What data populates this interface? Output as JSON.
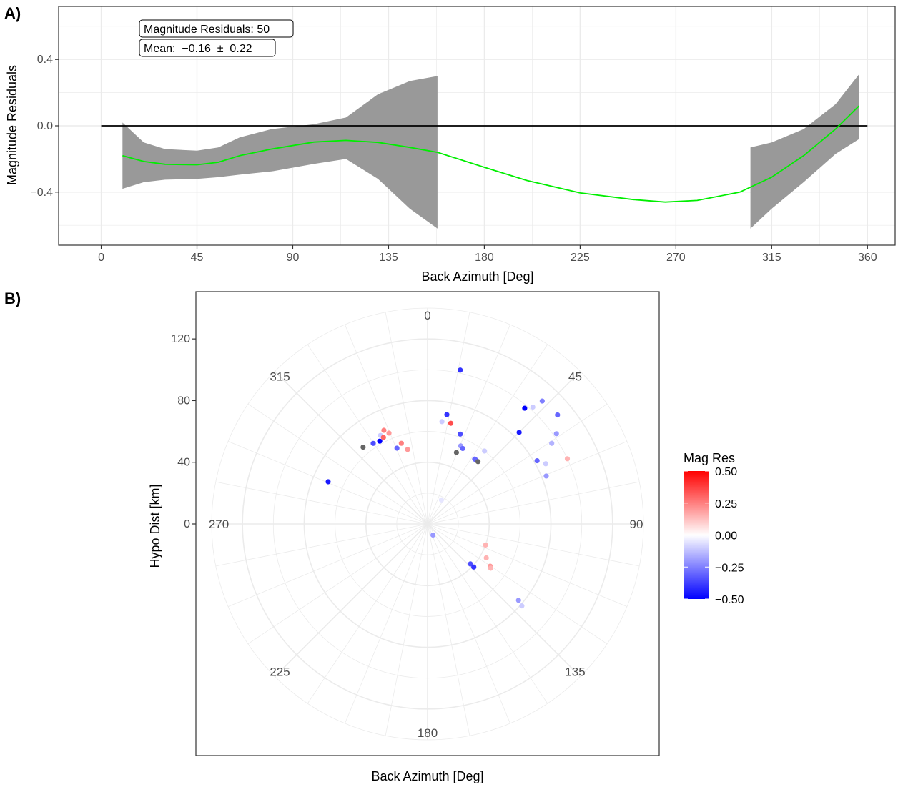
{
  "chart_data": [
    {
      "panel": "A)",
      "type": "line",
      "xlabel": "Back Azimuth [Deg]",
      "ylabel": "Magnitude Residuals",
      "xlim": [
        -20,
        373
      ],
      "ylim": [
        -0.72,
        0.72
      ],
      "x_ticks": [
        0,
        45,
        90,
        135,
        180,
        225,
        270,
        315,
        360
      ],
      "y_ticks": [
        -0.4,
        0.0,
        0.4
      ],
      "y_tick_labels": [
        "−0.4",
        "0.0",
        "0.4"
      ],
      "grid": true,
      "annotations": [
        "Magnitude Residuals: 50",
        "Mean:  −0.16  ±  0.22"
      ],
      "reference_line": {
        "y": 0,
        "from": 0,
        "to": 360,
        "color": "#000000"
      },
      "fit_color": "#00ee00",
      "band_color": "#999999",
      "fit": {
        "x": [
          10,
          20,
          30,
          45,
          55,
          65,
          80,
          100,
          115,
          130,
          145,
          158,
          180,
          200,
          225,
          250,
          265,
          280,
          300,
          315,
          330,
          345,
          356
        ],
        "y": [
          -0.18,
          -0.215,
          -0.232,
          -0.235,
          -0.22,
          -0.18,
          -0.14,
          -0.098,
          -0.088,
          -0.1,
          -0.13,
          -0.16,
          -0.25,
          -0.33,
          -0.405,
          -0.445,
          -0.46,
          -0.45,
          -0.4,
          -0.31,
          -0.18,
          -0.02,
          0.12
        ]
      },
      "bands": [
        {
          "x": [
            10,
            20,
            30,
            45,
            55,
            65,
            80,
            100,
            115,
            130,
            145,
            158
          ],
          "lower": [
            -0.38,
            -0.34,
            -0.325,
            -0.32,
            -0.31,
            -0.295,
            -0.275,
            -0.23,
            -0.2,
            -0.32,
            -0.5,
            -0.62
          ],
          "upper": [
            0.02,
            -0.1,
            -0.14,
            -0.15,
            -0.13,
            -0.07,
            -0.02,
            0.01,
            0.05,
            0.19,
            0.27,
            0.3
          ]
        },
        {
          "x": [
            305,
            315,
            330,
            345,
            356
          ],
          "lower": [
            -0.62,
            -0.5,
            -0.34,
            -0.17,
            -0.08
          ],
          "upper": [
            -0.13,
            -0.1,
            -0.02,
            0.13,
            0.31
          ]
        }
      ]
    },
    {
      "panel": "B)",
      "type": "scatter",
      "projection": "polar",
      "xlabel": "Back Azimuth [Deg]",
      "ylabel": "Hypo Dist [km]",
      "theta_ticks": [
        0,
        45,
        90,
        135,
        180,
        225,
        270,
        315
      ],
      "r_ticks": [
        0,
        40,
        80,
        120
      ],
      "r_max": 140,
      "grid": true,
      "color_scale": {
        "title": "Mag Res",
        "min": -0.5,
        "max": 0.5,
        "low": "#0000ff",
        "mid": "#ffffff",
        "high": "#ff0000",
        "na_color": "#666666",
        "ticks": [
          0.5,
          0.25,
          0.0,
          -0.25,
          -0.5
        ],
        "tick_labels": [
          "0.50",
          "0.25",
          "0.00",
          "−0.25",
          "−0.50"
        ]
      },
      "points": [
        {
          "az": 12,
          "dist": 102,
          "res": -0.4
        },
        {
          "az": 10,
          "dist": 72,
          "res": -0.4
        },
        {
          "az": 13,
          "dist": 67,
          "res": 0.35
        },
        {
          "az": 8,
          "dist": 67,
          "res": -0.1
        },
        {
          "az": 20,
          "dist": 62,
          "res": -0.35
        },
        {
          "az": 23,
          "dist": 55,
          "res": -0.2
        },
        {
          "az": 25,
          "dist": 54,
          "res": -0.3
        },
        {
          "az": 22,
          "dist": 50,
          "res": null
        },
        {
          "az": 40,
          "dist": 98,
          "res": -0.5
        },
        {
          "az": 43,
          "dist": 109,
          "res": -0.25
        },
        {
          "az": 42,
          "dist": 102,
          "res": -0.1
        },
        {
          "az": 50,
          "dist": 110,
          "res": -0.3
        },
        {
          "az": 55,
          "dist": 102,
          "res": -0.2
        },
        {
          "az": 57,
          "dist": 96,
          "res": -0.15
        },
        {
          "az": 45,
          "dist": 84,
          "res": -0.45
        },
        {
          "az": 38,
          "dist": 60,
          "res": -0.1
        },
        {
          "az": 36,
          "dist": 52,
          "res": -0.3
        },
        {
          "az": 37,
          "dist": 52,
          "res": -0.3
        },
        {
          "az": 39,
          "dist": 52,
          "res": null
        },
        {
          "az": 65,
          "dist": 100,
          "res": 0.15
        },
        {
          "az": 63,
          "dist": 86,
          "res": -0.1
        },
        {
          "az": 60,
          "dist": 82,
          "res": -0.3
        },
        {
          "az": 68,
          "dist": 83,
          "res": -0.2
        },
        {
          "az": 30,
          "dist": 18,
          "res": -0.05
        },
        {
          "az": 335,
          "dist": 67,
          "res": 0.25
        },
        {
          "az": 332,
          "dist": 65,
          "res": -0.1
        },
        {
          "az": 337,
          "dist": 64,
          "res": 0.2
        },
        {
          "az": 333,
          "dist": 63,
          "res": 0.3
        },
        {
          "az": 330,
          "dist": 62,
          "res": -0.5
        },
        {
          "az": 326,
          "dist": 63,
          "res": -0.35
        },
        {
          "az": 342,
          "dist": 55,
          "res": 0.25
        },
        {
          "az": 338,
          "dist": 53,
          "res": -0.3
        },
        {
          "az": 345,
          "dist": 50,
          "res": 0.2
        },
        {
          "az": 320,
          "dist": 65,
          "res": null
        },
        {
          "az": 293,
          "dist": 70,
          "res": -0.45
        },
        {
          "az": 133,
          "dist": 38,
          "res": -0.35
        },
        {
          "az": 133,
          "dist": 41,
          "res": -0.4
        },
        {
          "az": 110,
          "dist": 40,
          "res": 0.15
        },
        {
          "az": 120,
          "dist": 44,
          "res": 0.15
        },
        {
          "az": 124,
          "dist": 49,
          "res": 0.2
        },
        {
          "az": 125,
          "dist": 50,
          "res": 0.15
        },
        {
          "az": 130,
          "dist": 77,
          "res": -0.2
        },
        {
          "az": 131,
          "dist": 81,
          "res": -0.1
        },
        {
          "az": 154,
          "dist": 8,
          "res": -0.2
        }
      ]
    }
  ]
}
